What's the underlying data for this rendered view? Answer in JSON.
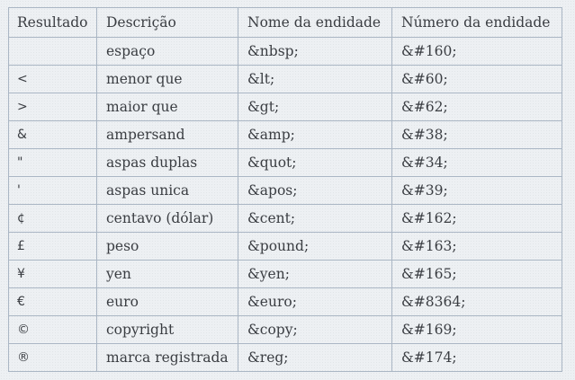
{
  "table": {
    "headers": [
      "Resultado",
      "Descrição",
      "Nome da endidade",
      "Número da endidade"
    ],
    "rows": [
      {
        "result": " ",
        "description": "espaço",
        "entity_name": "&nbsp;",
        "entity_number": "&#160;"
      },
      {
        "result": "<",
        "description": "menor que",
        "entity_name": "&lt;",
        "entity_number": "&#60;"
      },
      {
        "result": ">",
        "description": "maior que",
        "entity_name": "&gt;",
        "entity_number": "&#62;"
      },
      {
        "result": "&",
        "description": "ampersand",
        "entity_name": "&amp;",
        "entity_number": "&#38;"
      },
      {
        "result": "\"",
        "description": "aspas duplas",
        "entity_name": "&quot;",
        "entity_number": "&#34;"
      },
      {
        "result": "'",
        "description": "aspas unica",
        "entity_name": "&apos;",
        "entity_number": "&#39;"
      },
      {
        "result": "¢",
        "description": "centavo (dólar)",
        "entity_name": "&cent;",
        "entity_number": "&#162;"
      },
      {
        "result": "£",
        "description": "peso",
        "entity_name": "&pound;",
        "entity_number": "&#163;"
      },
      {
        "result": "¥",
        "description": "yen",
        "entity_name": "&yen;",
        "entity_number": "&#165;"
      },
      {
        "result": "€",
        "description": "euro",
        "entity_name": "&euro;",
        "entity_number": "&#8364;"
      },
      {
        "result": "©",
        "description": "copyright",
        "entity_name": "&copy;",
        "entity_number": "&#169;"
      },
      {
        "result": "®",
        "description": "marca registrada",
        "entity_name": "&reg;",
        "entity_number": "&#174;"
      }
    ]
  }
}
